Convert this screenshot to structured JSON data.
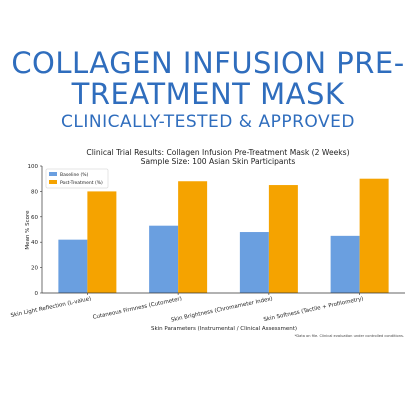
{
  "headline": {
    "line1": "COLLAGEN INFUSION PRE-",
    "line2": "TREATMENT MASK",
    "subtitle": "CLINICALLY-TESTED & APPROVED"
  },
  "colors": {
    "headline": "#2f6dbd",
    "baseline": "#6a9fe0",
    "post": "#f5a300"
  },
  "chart_data": {
    "type": "bar",
    "title": "Clinical Trial Results: Collagen Infusion Pre-Treatment Mask (2 Weeks)",
    "subtitle": "Sample Size: 100 Asian Skin Participants",
    "categories": [
      "Skin Light Reflection (L-value)",
      "Cutaneous Firmness (Cutometer)",
      "Skin Brightness (Chromameter Index)",
      "Skin Softness (Tactile + Profilometry)"
    ],
    "series": [
      {
        "name": "Baseline (%)",
        "values": [
          42,
          53,
          48,
          45
        ]
      },
      {
        "name": "Post-Treatment (%)",
        "values": [
          80,
          88,
          85,
          90
        ]
      }
    ],
    "xlabel": "Skin Parameters (Instrumental / Clinical Assessment)",
    "ylabel": "Mean % Score",
    "ylim": [
      0,
      100
    ],
    "yticks": [
      "0",
      "20",
      "40",
      "60",
      "80",
      "100"
    ],
    "legend_position": "top-left",
    "grid": false,
    "footnote": "*Data on file. Clinical evaluation under controlled conditions."
  }
}
